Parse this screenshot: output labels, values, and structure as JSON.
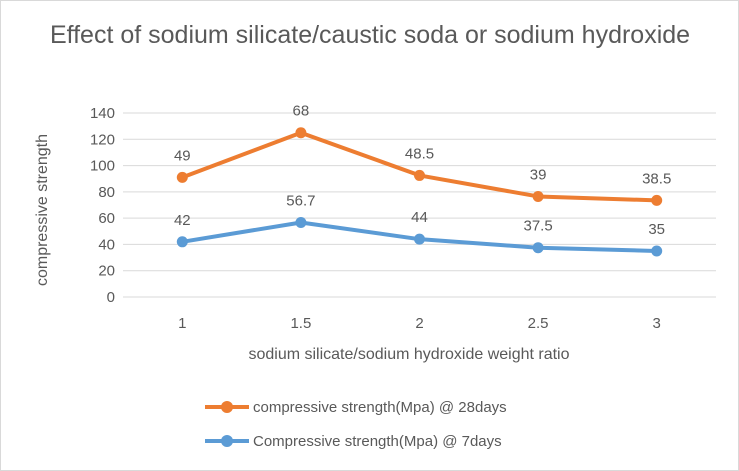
{
  "chart_data": {
    "type": "line",
    "title": "Effect of sodium silicate/caustic soda or sodium hydroxide",
    "xlabel": "sodium silicate/sodium hydroxide weight ratio",
    "ylabel": "compressive strength",
    "categories": [
      "1",
      "1.5",
      "2",
      "2.5",
      "3"
    ],
    "ylim": [
      0,
      140
    ],
    "yticks": [
      "0",
      "20",
      "40",
      "60",
      "80",
      "100",
      "120",
      "140"
    ],
    "grid": true,
    "legend_position": "bottom",
    "series": [
      {
        "name": "compressive strength(Mpa) @ 28days",
        "color": "#ED7D31",
        "values": [
          91,
          125,
          92.5,
          76.5,
          73.5
        ],
        "labels": [
          "49",
          "68",
          "48.5",
          "39",
          "38.5"
        ]
      },
      {
        "name": "Compressive strength(Mpa) @ 7days",
        "color": "#5B9BD5",
        "values": [
          42,
          56.7,
          44,
          37.5,
          35
        ],
        "labels": [
          "42",
          "56.7",
          "44",
          "37.5",
          "35"
        ]
      }
    ]
  }
}
